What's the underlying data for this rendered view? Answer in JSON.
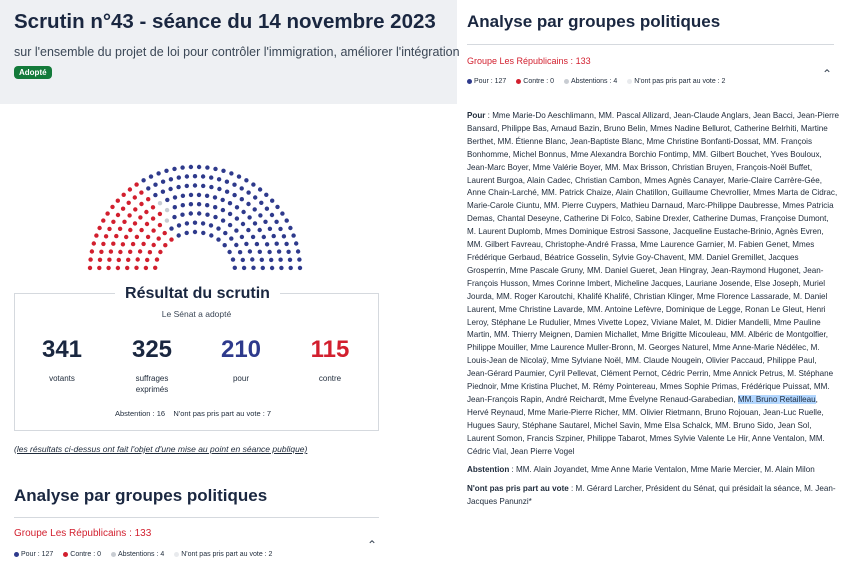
{
  "header": {
    "title": "Scrutin n°43 - séance du 14 novembre 2023",
    "subtitle": "sur l'ensemble du projet de loi pour contrôler l'immigration, améliorer l'intégration",
    "badge": "Adopté"
  },
  "hemicycle": {
    "pour": 210,
    "contre": 115,
    "abstentions": 16,
    "non_votants": 7,
    "colors": {
      "pour": "#2e3a8c",
      "contre": "#d21f2e",
      "abstention": "#c8ccd2"
    }
  },
  "result": {
    "title": "Résultat du scrutin",
    "subtitle": "Le Sénat a adopté",
    "votants": "341",
    "votants_label": "votants",
    "exprimes": "325",
    "exprimes_label": "suffrages exprimés",
    "pour": "210",
    "pour_label": "pour",
    "contre": "115",
    "contre_label": "contre",
    "abstention_line": "Abstention : 16    N'ont pas pris part au vote : 7"
  },
  "note": "(les résultats ci-dessus ont fait l'objet d'une mise au point en séance publique)",
  "left_analyse": {
    "title": "Analyse par groupes politiques",
    "group_name": "Groupe Les Républicains : 133",
    "legend": {
      "pour": "Pour : 127",
      "contre": "Contre : 0",
      "abstentions": "Abstentions : 4",
      "nppv": "N'ont pas pris part au vote : 2"
    }
  },
  "right_analyse": {
    "title": "Analyse par groupes politiques",
    "group_name": "Groupe Les Républicains : 133",
    "legend": {
      "pour": "Pour : 127",
      "contre": "Contre : 0",
      "abstentions": "Abstentions : 4",
      "nppv": "N'ont pas pris part au vote : 2"
    },
    "pour_label": "Pour",
    "pour_text_before": "Mme Marie-Do Aeschlimann, MM. Pascal Allizard, Jean-Claude Anglars, Jean Bacci, Jean-Pierre Bansard, Philippe Bas, Arnaud Bazin, Bruno Belin, Mmes Nadine Bellurot, Catherine Belrhiti, Martine Berthet, MM. Étienne Blanc, Jean-Baptiste Blanc, Mme Christine Bonfanti-Dossat, MM. François Bonhomme, Michel Bonnus, Mme Alexandra Borchio Fontimp, MM. Gilbert Bouchet, Yves Bouloux, Jean-Marc Boyer, Mme Valérie Boyer, MM. Max Brisson, Christian Bruyen, François-Noël Buffet, Laurent Burgoa, Alain Cadec, Christian Cambon, Mmes Agnès Canayer, Marie-Claire Carrère-Gée, Anne Chain-Larché, MM. Patrick Chaize, Alain Chatillon, Guillaume Chevrollier, Mmes Marta de Cidrac, Marie-Carole Ciuntu, MM. Pierre Cuypers, Mathieu Darnaud, Marc-Philippe Daubresse, Mmes Patricia Demas, Chantal Deseyne, Catherine Di Folco, Sabine Drexler, Catherine Dumas, Françoise Dumont, M. Laurent Duplomb, Mmes Dominique Estrosi Sassone, Jacqueline Eustache-Brinio, Agnès Evren, MM. Gilbert Favreau, Christophe-André Frassa, Mme Laurence Garnier, M. Fabien Genet, Mmes Frédérique Gerbaud, Béatrice Gosselin, Sylvie Goy-Chavent, MM. Daniel Gremillet, Jacques Grosperrin, Mme Pascale Gruny, MM. Daniel Gueret, Jean Hingray, Jean-Raymond Hugonet, Jean-François Husson, Mmes Corinne Imbert, Micheline Jacques, Lauriane Josende, Else Joseph, Muriel Jourda, MM. Roger Karoutchi, Khalifé Khalifé, Christian Klinger, Mme Florence Lassarade, M. Daniel Laurent, Mme Christine Lavarde, MM. Antoine Lefèvre, Dominique de Legge, Ronan Le Gleut, Henri Leroy, Stéphane Le Rudulier, Mmes Vivette Lopez, Viviane Malet, M. Didier Mandelli, Mme Pauline Martin, MM. Thierry Meignen, Damien Michallet, Mme Brigitte Micouleau, MM. Albéric de Montgolfier, Philippe Mouiller, Mme Laurence Muller-Bronn, M. Georges Naturel, Mme Anne-Marie Nédélec, M. Louis-Jean de Nicolaÿ, Mme Sylviane Noël, MM. Claude Nougein, Olivier Paccaud, Philippe Paul, Jean-Gérard Paumier, Cyril Pellevat, Clément Pernot, Cédric Perrin, Mme Annick Petrus, M. Stéphane Piednoir, Mme Kristina Pluchet, M. Rémy Pointereau, Mmes Sophie Primas, Frédérique Puissat, MM. Jean-François Rapin, André Reichardt, Mme Évelyne Renaud-Garabedian,",
    "pour_text_highlight": "MM. Bruno Retailleau",
    "pour_text_after": ", Hervé Reynaud, Mme Marie-Pierre Richer, MM. Olivier Rietmann, Bruno Rojouan, Jean-Luc Ruelle, Hugues Saury, Stéphane Sautarel, Michel Savin, Mme Elsa Schalck, MM. Bruno Sido, Jean Sol, Laurent Somon, Francis Szpiner, Philippe Tabarot, Mmes Sylvie Valente Le Hir, Anne Ventalon, MM. Cédric Vial, Jean Pierre Vogel",
    "abstention_label": "Abstention",
    "abstention_text": "MM. Alain Joyandet, Mme Anne Marie Ventalon, Mme Marie Mercier, M. Alain Milon",
    "nppv_label": "N'ont pas pris part au vote",
    "nppv_text": "M. Gérard Larcher, Président du Sénat, qui présidait la séance, M. Jean-Jacques Panunzi*"
  }
}
